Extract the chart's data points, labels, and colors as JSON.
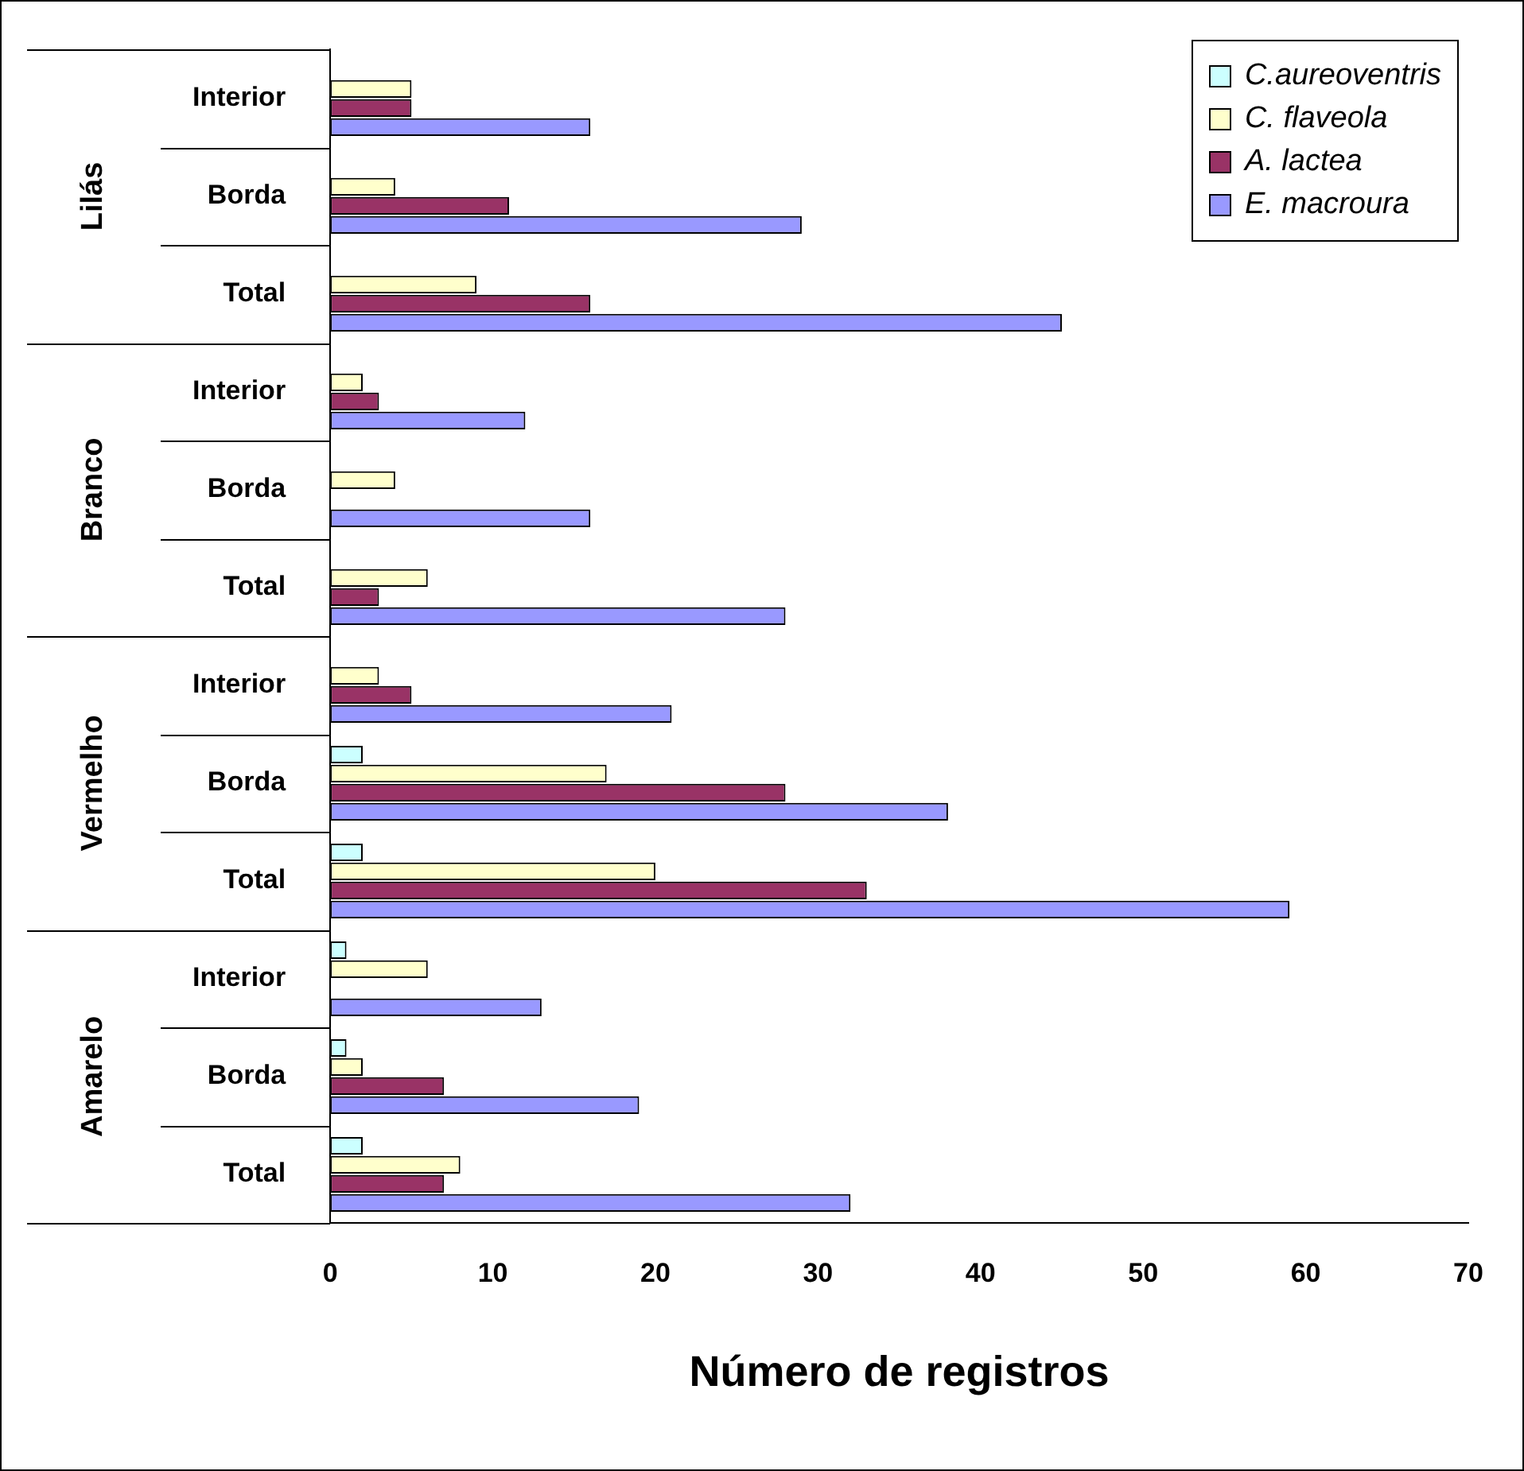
{
  "chart_data": {
    "type": "bar",
    "orientation": "horizontal",
    "xlabel": "Número de registros",
    "categories": [
      "Interior",
      "Borda",
      "Total",
      "Interior",
      "Borda",
      "Total",
      "Interior",
      "Borda",
      "Total",
      "Interior",
      "Borda",
      "Total"
    ],
    "annotations": [
      "Lilás",
      "Branco",
      "Vermelho",
      "Amarelo"
    ],
    "series": [
      {
        "name": "C.aureoventris",
        "color": "#ccffff",
        "values": [
          0,
          0,
          0,
          0,
          0,
          0,
          0,
          2,
          2,
          1,
          1,
          2
        ]
      },
      {
        "name": "C. flaveola",
        "color": "#ffffcc",
        "values": [
          5,
          4,
          9,
          2,
          4,
          6,
          3,
          17,
          20,
          6,
          2,
          8
        ]
      },
      {
        "name": "A. lactea",
        "color": "#993366",
        "values": [
          5,
          11,
          16,
          3,
          0,
          3,
          5,
          28,
          33,
          0,
          7,
          7
        ]
      },
      {
        "name": "E. macroura",
        "color": "#9999ff",
        "values": [
          16,
          29,
          45,
          12,
          16,
          28,
          21,
          38,
          59,
          13,
          19,
          32
        ]
      }
    ],
    "xlim": [
      0,
      70
    ],
    "xticks": [
      0,
      10,
      20,
      30,
      40,
      50,
      60,
      70
    ],
    "legend": "top right"
  }
}
